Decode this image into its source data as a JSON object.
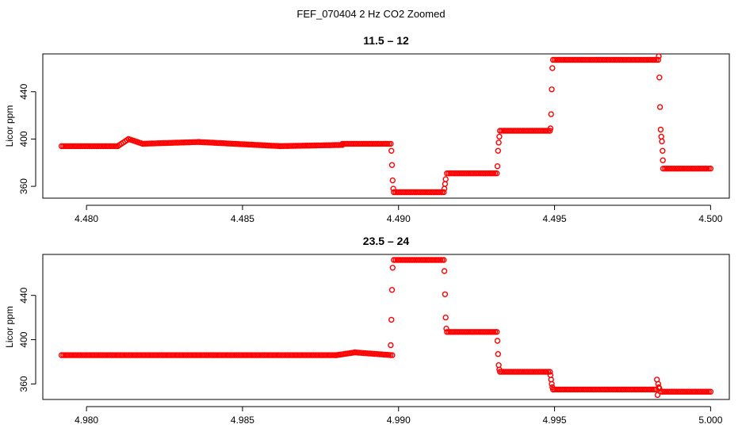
{
  "figure": {
    "suptitle": "FEF_070404  2 Hz CO2 Zoomed"
  },
  "colors": {
    "points": "#ff0000",
    "axes": "#000000",
    "background": "#ffffff"
  },
  "chart_data": [
    {
      "type": "scatter",
      "title": "11.5 – 12",
      "xlabel": "",
      "ylabel": "Licor ppm",
      "xlim": [
        4.4786,
        4.5006
      ],
      "ylim": [
        350,
        472
      ],
      "xticks": [
        4.48,
        4.485,
        4.49,
        4.495,
        4.5
      ],
      "xtick_labels": [
        "4.480",
        "4.485",
        "4.490",
        "4.495",
        "4.500"
      ],
      "yticks": [
        360,
        400,
        440
      ],
      "ytick_labels": [
        "360",
        "400",
        "440"
      ],
      "marker": "open-circle",
      "grid": false,
      "series": [
        {
          "segments": [
            {
              "x_start": 4.4792,
              "x_end": 4.481,
              "y_start": 394,
              "y_end": 394,
              "step": 5.6e-05
            },
            {
              "x_start": 4.481,
              "x_end": 4.48135,
              "y_start": 394,
              "y_end": 400,
              "step": 5.6e-05
            },
            {
              "x_start": 4.48135,
              "x_end": 4.4818,
              "y_start": 400,
              "y_end": 396,
              "step": 5.6e-05
            },
            {
              "x_start": 4.4818,
              "x_end": 4.4836,
              "y_start": 396,
              "y_end": 397.5,
              "step": 5.6e-05
            },
            {
              "x_start": 4.4836,
              "x_end": 4.4862,
              "y_start": 397.5,
              "y_end": 394,
              "step": 5.6e-05
            },
            {
              "x_start": 4.4862,
              "x_end": 4.4882,
              "y_start": 394,
              "y_end": 395,
              "step": 5.6e-05
            },
            {
              "x_start": 4.4882,
              "x_end": 4.48975,
              "y_start": 396,
              "y_end": 396,
              "step": 5.6e-05
            },
            {
              "x_start": 4.48985,
              "x_end": 4.49145,
              "y_start": 355,
              "y_end": 355,
              "step": 5.6e-05
            },
            {
              "x_start": 4.49155,
              "x_end": 4.49315,
              "y_start": 371,
              "y_end": 371,
              "step": 5.6e-05
            },
            {
              "x_start": 4.49325,
              "x_end": 4.49485,
              "y_start": 407,
              "y_end": 407,
              "step": 5.6e-05
            },
            {
              "x_start": 4.49495,
              "x_end": 4.49832,
              "y_start": 467,
              "y_end": 467,
              "step": 5.6e-05
            },
            {
              "x_start": 4.49848,
              "x_end": 4.5,
              "y_start": 375,
              "y_end": 375,
              "step": 5.6e-05
            }
          ],
          "points": [
            [
              4.48977,
              390
            ],
            [
              4.48979,
              378
            ],
            [
              4.48981,
              365
            ],
            [
              4.48983,
              358
            ],
            [
              4.49147,
              358
            ],
            [
              4.49149,
              362
            ],
            [
              4.49151,
              366
            ],
            [
              4.49317,
              377
            ],
            [
              4.49319,
              390
            ],
            [
              4.49321,
              397
            ],
            [
              4.49323,
              402
            ],
            [
              4.49487,
              409
            ],
            [
              4.49489,
              421
            ],
            [
              4.49491,
              442
            ],
            [
              4.49493,
              460
            ],
            [
              4.49834,
              470
            ],
            [
              4.49836,
              452
            ],
            [
              4.49838,
              427
            ],
            [
              4.4984,
              408
            ],
            [
              4.49842,
              402
            ],
            [
              4.49844,
              398
            ],
            [
              4.49846,
              390
            ],
            [
              4.49847,
              382
            ]
          ]
        }
      ]
    },
    {
      "type": "scatter",
      "title": "23.5 – 24",
      "xlabel": "",
      "ylabel": "Licor ppm",
      "xlim": [
        4.9786,
        5.0006
      ],
      "ylim": [
        346,
        477
      ],
      "xticks": [
        4.98,
        4.985,
        4.99,
        4.995,
        5.0
      ],
      "xtick_labels": [
        "4.980",
        "4.985",
        "4.990",
        "4.995",
        "5.000"
      ],
      "yticks": [
        360,
        400,
        440
      ],
      "ytick_labels": [
        "360",
        "400",
        "440"
      ],
      "marker": "open-circle",
      "grid": false,
      "series": [
        {
          "segments": [
            {
              "x_start": 4.9792,
              "x_end": 4.988,
              "y_start": 386,
              "y_end": 386,
              "step": 5.6e-05
            },
            {
              "x_start": 4.988,
              "x_end": 4.9886,
              "y_start": 386,
              "y_end": 388.5,
              "step": 5.6e-05
            },
            {
              "x_start": 4.9886,
              "x_end": 4.9898,
              "y_start": 388.5,
              "y_end": 386,
              "step": 5.6e-05
            },
            {
              "x_start": 4.98985,
              "x_end": 4.99145,
              "y_start": 472,
              "y_end": 472,
              "step": 5.6e-05
            },
            {
              "x_start": 4.99155,
              "x_end": 4.99315,
              "y_start": 407,
              "y_end": 407,
              "step": 5.6e-05
            },
            {
              "x_start": 4.99325,
              "x_end": 4.99485,
              "y_start": 371,
              "y_end": 371,
              "step": 5.6e-05
            },
            {
              "x_start": 4.99495,
              "x_end": 4.99825,
              "y_start": 355,
              "y_end": 355,
              "step": 5.6e-05
            },
            {
              "x_start": 4.9984,
              "x_end": 5.0,
              "y_start": 353,
              "y_end": 353,
              "step": 5.6e-05
            }
          ],
          "points": [
            [
              4.98975,
              395
            ],
            [
              4.98977,
              418
            ],
            [
              4.98979,
              445
            ],
            [
              4.98981,
              465
            ],
            [
              4.99147,
              462
            ],
            [
              4.99149,
              441
            ],
            [
              4.99151,
              420
            ],
            [
              4.99153,
              410
            ],
            [
              4.99317,
              399
            ],
            [
              4.99319,
              387
            ],
            [
              4.99321,
              377
            ],
            [
              4.99323,
              373
            ],
            [
              4.99487,
              368
            ],
            [
              4.99489,
              364
            ],
            [
              4.99491,
              360
            ],
            [
              4.99493,
              357
            ],
            [
              4.99828,
              364
            ],
            [
              4.9983,
              350
            ],
            [
              4.99832,
              360
            ],
            [
              4.99834,
              357
            ],
            [
              4.99836,
              356
            ]
          ]
        }
      ]
    }
  ]
}
